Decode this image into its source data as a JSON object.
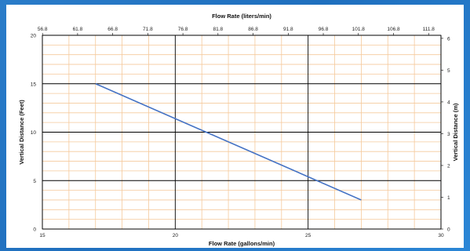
{
  "chart_data": {
    "type": "line",
    "title": "",
    "x_bottom": {
      "label": "Flow Rate (gallons/min)",
      "range": [
        15,
        30
      ],
      "major_ticks": [
        15,
        20,
        25,
        30
      ],
      "minor_step": 1
    },
    "x_top": {
      "label": "Flow Rate (liters/min)",
      "tick_labels": [
        "56.8",
        "61.8",
        "66.8",
        "71.8",
        "76.8",
        "81.8",
        "86.8",
        "91.8",
        "96.8",
        "101.8",
        "106.8",
        "111.8"
      ]
    },
    "y_left": {
      "label": "Vertical Distance (Feet)",
      "range": [
        0,
        20
      ],
      "major_ticks": [
        0,
        5,
        10,
        15,
        20
      ],
      "minor_step": 1
    },
    "y_right": {
      "label": "Vertical Distance (m)",
      "range": [
        0,
        6.096
      ],
      "tick_labels": [
        "0",
        "1",
        "2",
        "3",
        "4",
        "5",
        "6"
      ]
    },
    "grid": true,
    "series": [
      {
        "x": [
          17,
          27
        ],
        "y": [
          15,
          3
        ],
        "color": "#4472c4"
      }
    ],
    "colors": {
      "major_grid": "#000000",
      "minor_grid": "#f5c99b",
      "line": "#4472c4"
    }
  }
}
